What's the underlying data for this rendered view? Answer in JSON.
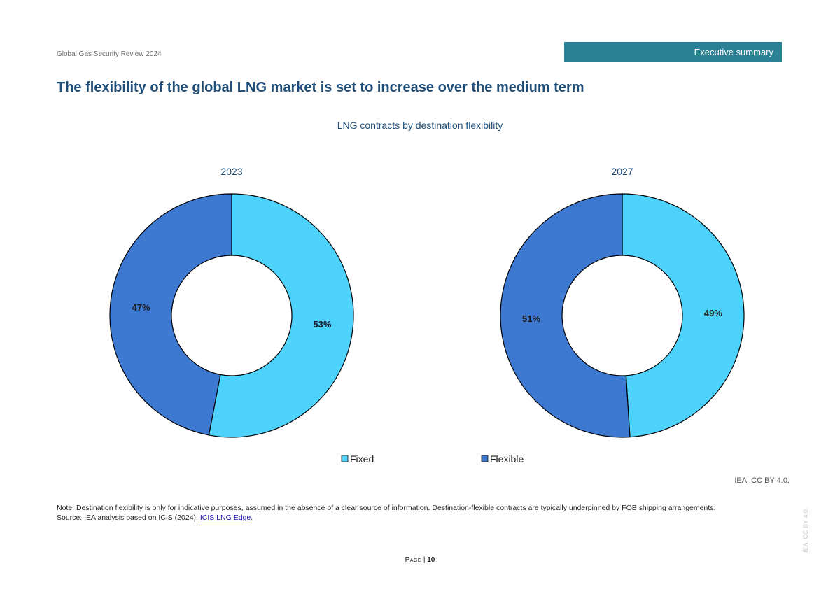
{
  "header": {
    "document_name": "Global Gas Security Review 2024",
    "section_tag": "Executive summary"
  },
  "headline": "The flexibility of the global LNG market is set to increase over the medium term",
  "chart_data": {
    "type": "pie",
    "variant": "donut",
    "title": "LNG contracts by destination flexibility",
    "legend": {
      "position": "bottom",
      "entries": [
        "Fixed",
        "Flexible"
      ]
    },
    "colors": {
      "Fixed": "#4dd2fb",
      "Flexible": "#3d78d1"
    },
    "charts": [
      {
        "title": "2023",
        "slices": [
          {
            "label": "Fixed",
            "value": 53,
            "display": "53%"
          },
          {
            "label": "Flexible",
            "value": 47,
            "display": "47%"
          }
        ]
      },
      {
        "title": "2027",
        "slices": [
          {
            "label": "Fixed",
            "value": 49,
            "display": "49%"
          },
          {
            "label": "Flexible",
            "value": 51,
            "display": "51%"
          }
        ]
      }
    ]
  },
  "credit": "IEA. CC BY 4.0.",
  "notes": {
    "note": "Note: Destination flexibility is only for indicative purposes, assumed in the absence of a clear source of information. Destination-flexible contracts are typically underpinned by FOB shipping arrangements.",
    "source_prefix": "Source: IEA analysis based on ICIS (2024), ",
    "source_link": "ICIS LNG Edge",
    "source_suffix": "."
  },
  "footer": {
    "page_label": "Page",
    "page_separator": " | ",
    "page_number": "10"
  },
  "side_credit": "IEA. CC BY 4.0."
}
